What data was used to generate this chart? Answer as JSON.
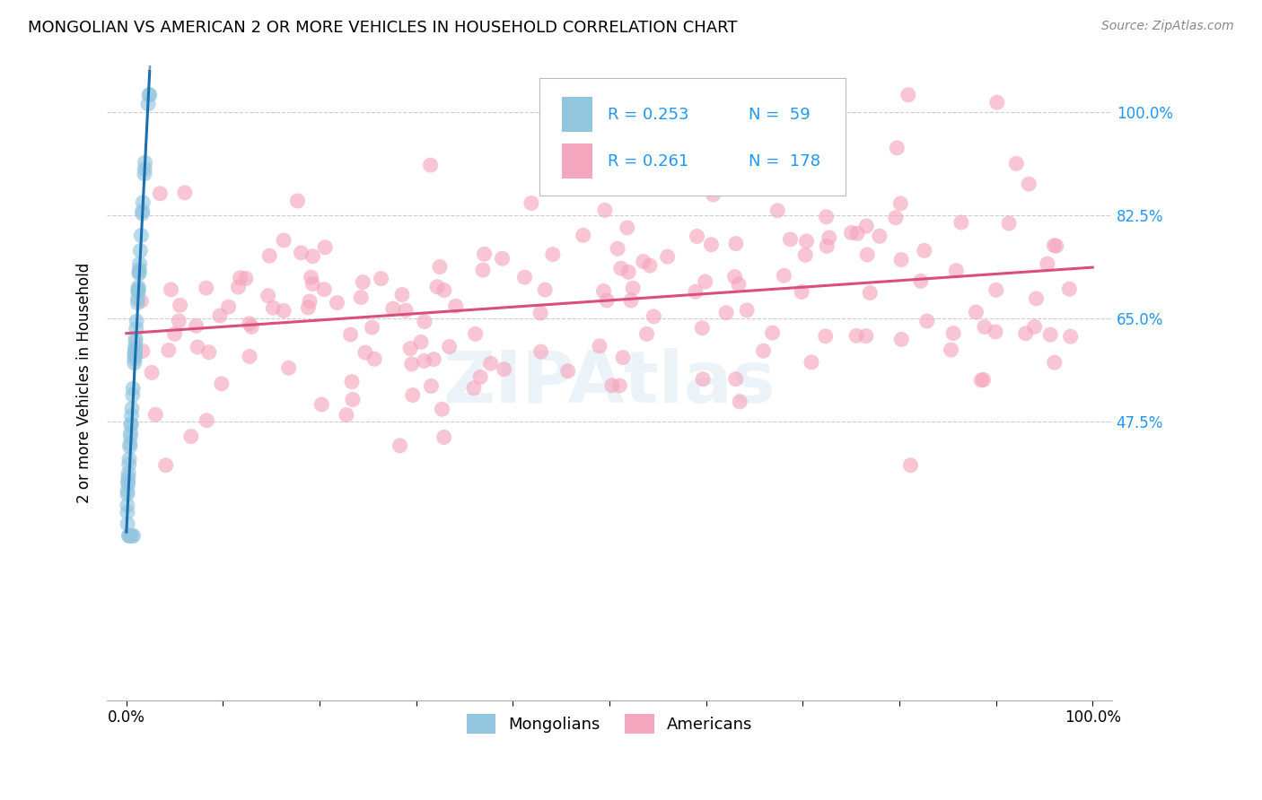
{
  "title": "MONGOLIAN VS AMERICAN 2 OR MORE VEHICLES IN HOUSEHOLD CORRELATION CHART",
  "source": "Source: ZipAtlas.com",
  "ylabel": "2 or more Vehicles in Household",
  "watermark": "ZIPAtlas",
  "mongolian_color": "#92c5de",
  "american_color": "#f4a6be",
  "mongolian_line_color": "#1a6faf",
  "american_line_color": "#d94f7a",
  "legend_blue_color": "#2196F3",
  "right_tick_color": "#2196F3",
  "grid_color": "#cccccc",
  "background_color": "#ffffff",
  "R_mongolian": 0.253,
  "N_mongolian": 59,
  "R_american": 0.261,
  "N_american": 178,
  "scatter_size": 150,
  "scatter_alpha": 0.65,
  "ylim_low": 0.0,
  "ylim_high": 1.08,
  "xlim_low": -0.02,
  "xlim_high": 1.02,
  "ytick_positions": [
    0.475,
    0.65,
    0.825,
    1.0
  ],
  "ytick_labels": [
    "47.5%",
    "65.0%",
    "82.5%",
    "100.0%"
  ],
  "xtick_positions": [
    0.0,
    0.1,
    0.2,
    0.3,
    0.4,
    0.5,
    0.6,
    0.7,
    0.8,
    0.9,
    1.0
  ],
  "xtick_labels": [
    "0.0%",
    "",
    "",
    "",
    "",
    "",
    "",
    "",
    "",
    "",
    "100.0%"
  ],
  "title_fontsize": 13,
  "tick_fontsize": 12,
  "ylabel_fontsize": 12,
  "legend_fontsize": 13
}
